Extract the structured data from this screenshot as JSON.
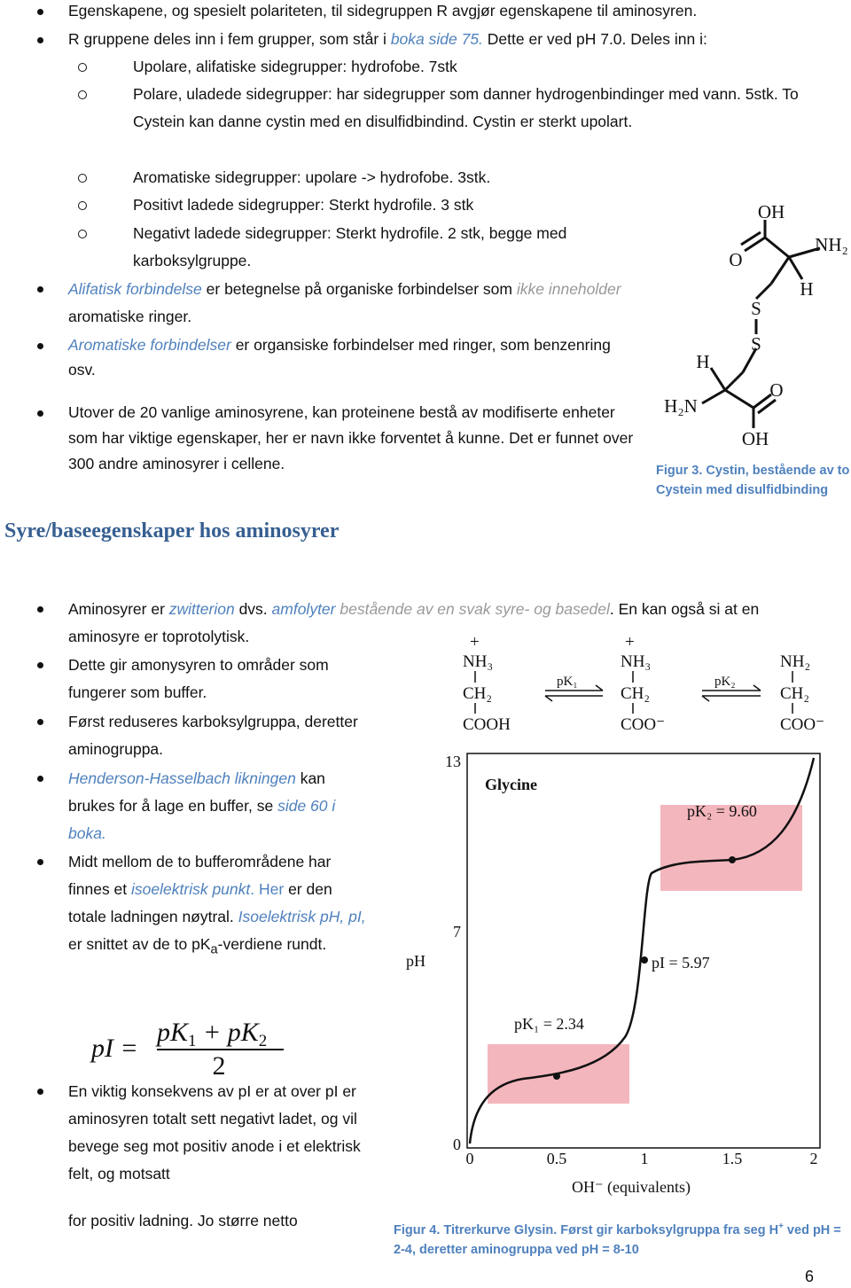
{
  "intro": [
    [
      "Egenskapene, og spesielt polariteten, til sidegruppen R avgjør egenskapene til aminosyren."
    ],
    [
      "R gruppene deles inn i fem grupper, som står i ",
      "boka side 75.",
      " Dette er ved pH 7.0. Deles inn i:"
    ]
  ],
  "groups": [
    "Upolare, alifatiske sidegrupper: hydrofobe. 7stk",
    "Polare, uladede sidegrupper: har sidegrupper som danner hydrogenbindinger med vann. 5stk. To Cystein kan danne cystin med en disulfidbindind. Cystin er sterkt upolart.",
    "Aromatiske sidegrupper:  upolare -> hydrofobe. 3stk.",
    "Positivt ladede sidegrupper: Sterkt hydrofile. 3 stk",
    "Negativt ladede sidegrupper: Sterkt hydrofile. 2 stk, begge med karboksylgruppe."
  ],
  "definitions": [
    [
      "Alifatisk forbindelse",
      " er betegnelse på organiske forbindelser som ",
      "ikke inneholder",
      " aromatiske ringer."
    ],
    [
      "Aromatiske forbindelser",
      " er organsiske forbindelser med ringer, som benzenring osv."
    ]
  ],
  "modified": "Utover de 20 vanlige aminosyrene, kan proteinene bestå av modifiserte enheter som har viktige egenskaper, her er navn ikke forventet å kunne. Det er funnet over 300 andre aminosyrer i cellene.",
  "figure3": {
    "labels": [
      "OH",
      "NH₂",
      "O",
      "H",
      "S",
      "S",
      "H",
      "H₂N",
      "O",
      "OH"
    ],
    "caption": "Figur 3. Cystin, bestående av to Cystein med disulfidbinding"
  },
  "heading": "Syre/baseegenskaper hos aminosyrer",
  "acid_base": [
    [
      "Aminosyrer er ",
      "zwitterion",
      " dvs. ",
      "amfolyter",
      " bestående av en svak syre- og basedel",
      ". En kan også si at en aminosyre er toprotolytisk."
    ],
    [
      "Dette gir amonysyren to områder som fungerer som buffer."
    ],
    [
      "Først reduseres karboksylgruppa, deretter aminogruppa."
    ],
    [
      "Henderson-Hasselbach likningen",
      " kan brukes for å lage en buffer, se ",
      "side 60 i boka."
    ],
    [
      "Midt mellom de to bufferområdene har finnes et ",
      "isoelektrisk punkt",
      ". Her",
      " er den totale ladningen nøytral. ",
      "Isoelektrisk pH, pI,",
      " er snittet av de to pK",
      "a",
      "-verdiene rundt."
    ]
  ],
  "formula": {
    "lhs": "pI =",
    "numerator": [
      "pK",
      "1",
      " + pK",
      "2"
    ],
    "denominator": "2"
  },
  "consequence": "En viktig konsekvens av pI er at over pI er aminosyren totalt sett negativt ladet, og vil bevege seg mot positiv anode i et elektrisk felt, og motsatt",
  "continuation": "for positiv ladning. Jo større netto",
  "figure4": {
    "species": [
      [
        "+",
        "NH₃",
        "CH₂",
        "COOH"
      ],
      [
        "+",
        "NH₃",
        "CH₂",
        "COO⁻"
      ],
      [
        "NH₂",
        "CH₂",
        "COO⁻"
      ]
    ],
    "arrows": [
      "pK₁",
      "pK₂"
    ],
    "title": "Glycine",
    "annotations": [
      "pK₂ = 9.60",
      "pI = 5.97",
      "pK₁ = 2.34"
    ],
    "y_label": "pH",
    "x_label": "OH⁻ (equivalents)",
    "yticks": [
      "13",
      "7",
      "0"
    ],
    "xticks": [
      "0",
      "0.5",
      "1",
      "1.5",
      "2"
    ],
    "caption": [
      "Figur 4. Titrerkurve Glysin. Først gir karboksylgruppa fra seg H",
      "+",
      " ved pH = 2-4, deretter aminogruppa ved pH = 8-10"
    ]
  },
  "page_number": "6"
}
